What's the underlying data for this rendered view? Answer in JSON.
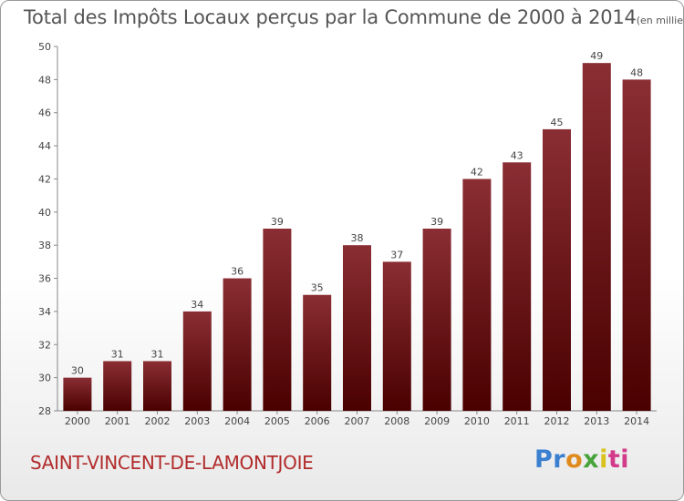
{
  "chart_data": {
    "type": "bar",
    "title": "Total des Impôts Locaux perçus par la Commune de 2000 à 2014",
    "subtitle": "(en milliers d'€)",
    "categories": [
      "2000",
      "2001",
      "2002",
      "2003",
      "2004",
      "2005",
      "2006",
      "2007",
      "2008",
      "2009",
      "2010",
      "2011",
      "2012",
      "2013",
      "2014"
    ],
    "values": [
      30,
      31,
      31,
      34,
      36,
      39,
      35,
      38,
      37,
      39,
      42,
      43,
      45,
      49,
      48
    ],
    "ylim": [
      28,
      50
    ],
    "yticks": [
      28,
      30,
      32,
      34,
      36,
      38,
      40,
      42,
      44,
      46,
      48,
      50
    ],
    "xlabel": "",
    "ylabel": "",
    "grid": false
  },
  "commune_name": "SAINT-VINCENT-DE-LAMONTJOIE",
  "logo": {
    "text": "Proxiti",
    "parts": [
      "Pr",
      "o",
      "x",
      "i",
      "ti"
    ]
  },
  "colors": {
    "bar_top": "#8a2e34",
    "bar_bottom": "#4a0000",
    "accent": "#b22b2b"
  }
}
